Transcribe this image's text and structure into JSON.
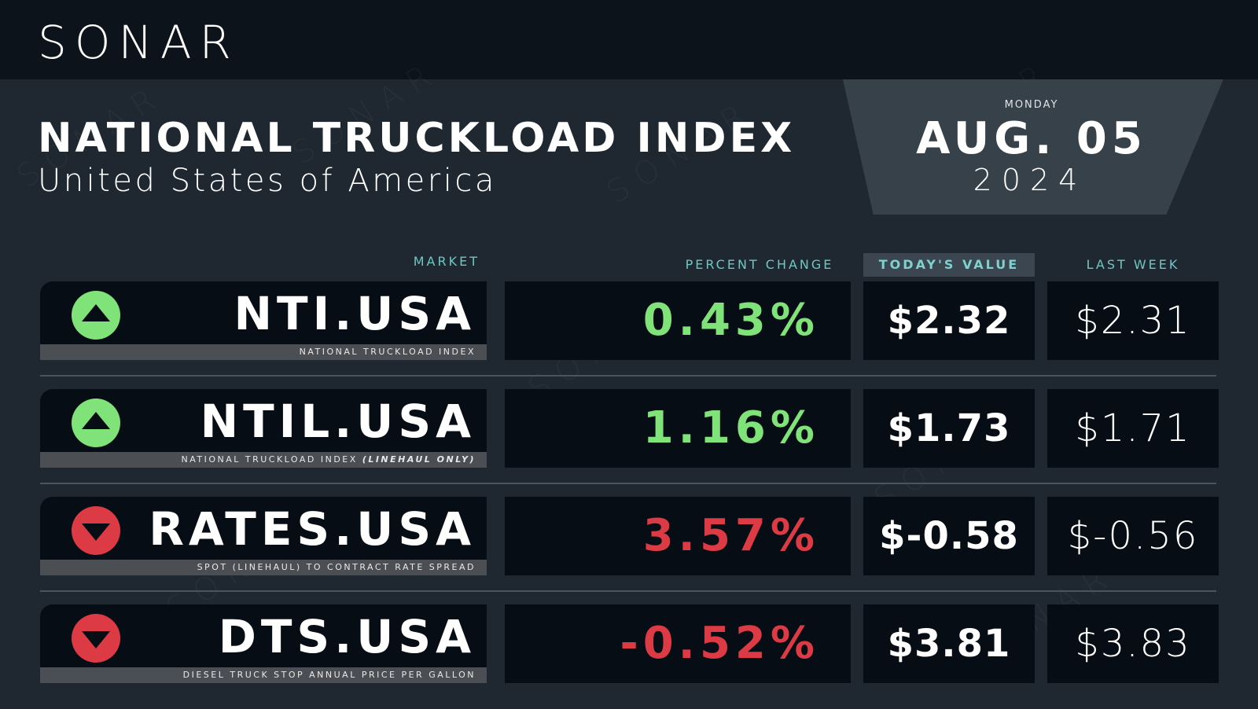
{
  "brand": {
    "logo": "SONAR",
    "watermark": "SONAR"
  },
  "header": {
    "title": "NATIONAL TRUCKLOAD INDEX",
    "subtitle": "United States of America"
  },
  "date": {
    "day_of_week": "MONDAY",
    "month_day": "AUG. 05",
    "year": "2024"
  },
  "columns": {
    "market": "MARKET",
    "percent_change": "PERCENT CHANGE",
    "todays_value": "TODAY'S VALUE",
    "last_week": "LAST WEEK"
  },
  "colors": {
    "background": "#1f2830",
    "topbar": "#0c131b",
    "up": "#7fe37a",
    "down": "#dc3a45",
    "accent_header": "#6fc6c4"
  },
  "rows": [
    {
      "ticker": "NTI.USA",
      "description": "NATIONAL TRUCKLOAD INDEX",
      "description_italic": "",
      "direction": "up",
      "arrow_icon": "up-triangle-icon",
      "percent_change": "0.43%",
      "percent_sign": "pos",
      "todays_value": "$2.32",
      "last_week": "$2.31"
    },
    {
      "ticker": "NTIL.USA",
      "description": "NATIONAL TRUCKLOAD INDEX ",
      "description_italic": "(LINEHAUL ONLY)",
      "direction": "up",
      "arrow_icon": "up-triangle-icon",
      "percent_change": "1.16%",
      "percent_sign": "pos",
      "todays_value": "$1.73",
      "last_week": "$1.71"
    },
    {
      "ticker": "RATES.USA",
      "description": "SPOT (LINEHAUL) TO CONTRACT RATE SPREAD",
      "description_italic": "",
      "direction": "down",
      "arrow_icon": "down-triangle-icon",
      "percent_change": "3.57%",
      "percent_sign": "neg",
      "todays_value": "$-0.58",
      "last_week": "$-0.56"
    },
    {
      "ticker": "DTS.USA",
      "description": "DIESEL TRUCK STOP ANNUAL PRICE PER GALLON",
      "description_italic": "",
      "direction": "down",
      "arrow_icon": "down-triangle-icon",
      "percent_change": "-0.52%",
      "percent_sign": "neg",
      "todays_value": "$3.81",
      "last_week": "$3.83"
    }
  ]
}
